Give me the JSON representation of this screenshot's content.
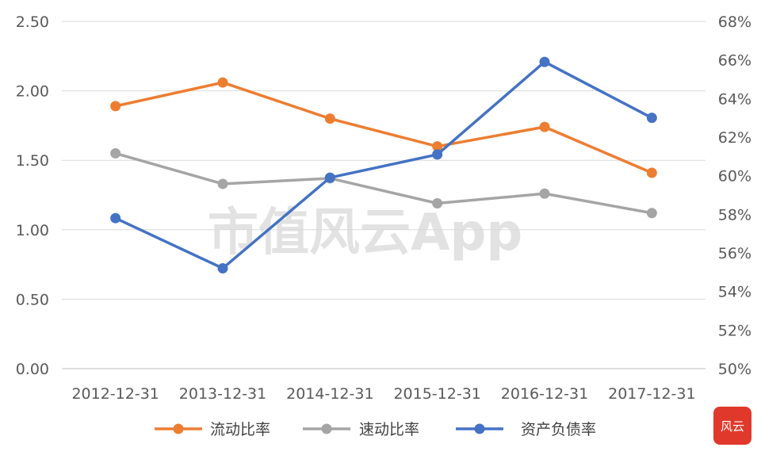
{
  "chart_data": {
    "type": "line",
    "categories": [
      "2012-12-31",
      "2013-12-31",
      "2014-12-31",
      "2015-12-31",
      "2016-12-31",
      "2017-12-31"
    ],
    "y_left": {
      "ticks": [
        "0.00",
        "0.50",
        "1.00",
        "1.50",
        "2.00",
        "2.50"
      ],
      "ylim": [
        0,
        2.5
      ]
    },
    "y_right": {
      "ticks": [
        "50%",
        "52%",
        "54%",
        "56%",
        "58%",
        "60%",
        "62%",
        "64%",
        "66%",
        "68%"
      ],
      "ylim": [
        50,
        68
      ]
    },
    "grid": true,
    "legend_position": "bottom",
    "series": [
      {
        "name": "流动比率",
        "axis": "left",
        "color": "#ED7D31",
        "values": [
          1.89,
          2.06,
          1.8,
          1.6,
          1.74,
          1.41
        ]
      },
      {
        "name": "速动比率",
        "axis": "left",
        "color": "#A5A5A5",
        "values": [
          1.55,
          1.33,
          1.37,
          1.19,
          1.26,
          1.12
        ]
      },
      {
        "name": "资产负债率",
        "axis": "right",
        "color": "#4472C4",
        "values": [
          57.8,
          55.2,
          59.9,
          61.1,
          65.9,
          63.0
        ]
      }
    ],
    "watermark": "市值风云App",
    "badge": "风云"
  }
}
